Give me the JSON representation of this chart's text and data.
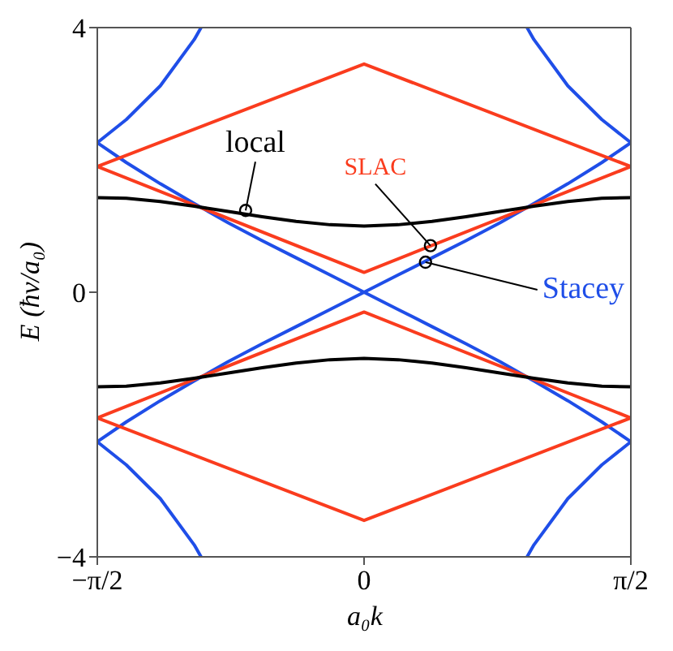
{
  "chart_data": {
    "type": "line",
    "xlabel": "a₀k",
    "ylabel": "E  (ħv/a₀)",
    "xlim": [
      -1.571,
      1.571
    ],
    "xticks": [
      {
        "value": -1.571,
        "label": "−π/2"
      },
      {
        "value": 0,
        "label": "0"
      },
      {
        "value": 1.571,
        "label": "π/2"
      }
    ],
    "ylim": [
      -4,
      4
    ],
    "yticks": [
      {
        "value": -4,
        "label": "−4"
      },
      0,
      4
    ],
    "marker": "none",
    "line_style": "solid",
    "series": [
      {
        "color": "#1f4ee8",
        "x": [
          -1.571,
          -1.4,
          -1.2,
          -1,
          -0.8,
          -0.6,
          -0.4,
          -0.2,
          0,
          0.2,
          0.4,
          0.6,
          0.8,
          1,
          1.2,
          1.4,
          1.571
        ],
        "values": [
          -2.26,
          -1.96,
          -1.64,
          -1.34,
          -1.05,
          -0.78,
          -0.52,
          -0.26,
          0,
          0.26,
          0.52,
          0.78,
          1.05,
          1.34,
          1.64,
          1.96,
          2.26
        ]
      },
      {
        "color": "#1f4ee8",
        "x": [
          -1.571,
          -1.4,
          -1.2,
          -1,
          -0.8,
          -0.6,
          -0.4,
          -0.2,
          0,
          0.2,
          0.4,
          0.6,
          0.8,
          1,
          1.2,
          1.4,
          1.571
        ],
        "values": [
          2.26,
          1.96,
          1.64,
          1.34,
          1.05,
          0.78,
          0.52,
          0.26,
          0,
          -0.26,
          -0.52,
          -0.78,
          -1.05,
          -1.34,
          -1.64,
          -1.96,
          -2.26
        ]
      },
      {
        "color": "#1f4ee8",
        "x": [
          -1.571,
          -1.4,
          -1.2,
          -1,
          -0.96
        ],
        "values": [
          2.26,
          2.61,
          3.12,
          3.82,
          4
        ]
      },
      {
        "color": "#1f4ee8",
        "x": [
          0.96,
          1,
          1.2,
          1.4,
          1.571
        ],
        "values": [
          4,
          3.82,
          3.12,
          2.61,
          2.26
        ]
      },
      {
        "color": "#1f4ee8",
        "x": [
          -1.571,
          -1.4,
          -1.2,
          -1,
          -0.96
        ],
        "values": [
          -2.26,
          -2.61,
          -3.12,
          -3.82,
          -4
        ]
      },
      {
        "color": "#1f4ee8",
        "x": [
          0.96,
          1,
          1.2,
          1.4,
          1.571
        ],
        "values": [
          -4,
          -3.82,
          -3.12,
          -2.61,
          -2.26
        ]
      },
      {
        "color": "#fa3c1e",
        "x": [
          -1.571,
          0,
          1.571
        ],
        "values": [
          1.9,
          3.45,
          1.9
        ]
      },
      {
        "color": "#fa3c1e",
        "x": [
          -1.571,
          0,
          1.571
        ],
        "values": [
          1.9,
          0.3,
          1.9
        ]
      },
      {
        "color": "#fa3c1e",
        "x": [
          -1.571,
          0,
          1.571
        ],
        "values": [
          -1.9,
          -0.3,
          -1.9
        ]
      },
      {
        "color": "#fa3c1e",
        "x": [
          -1.571,
          0,
          1.571
        ],
        "values": [
          -1.9,
          -3.45,
          -1.9
        ]
      },
      {
        "color": "#000000",
        "x": [
          -1.571,
          -1.4,
          -1.2,
          -1,
          -0.8,
          -0.6,
          -0.4,
          -0.2,
          0,
          0.2,
          0.4,
          0.6,
          0.8,
          1,
          1.2,
          1.4,
          1.571
        ],
        "values": [
          1.43,
          1.42,
          1.37,
          1.3,
          1.22,
          1.14,
          1.07,
          1.02,
          1,
          1.02,
          1.07,
          1.14,
          1.22,
          1.3,
          1.37,
          1.42,
          1.43
        ]
      },
      {
        "color": "#000000",
        "x": [
          -1.571,
          -1.4,
          -1.2,
          -1,
          -0.8,
          -0.6,
          -0.4,
          -0.2,
          0,
          0.2,
          0.4,
          0.6,
          0.8,
          1,
          1.2,
          1.4,
          1.571
        ],
        "values": [
          -1.43,
          -1.42,
          -1.37,
          -1.3,
          -1.22,
          -1.14,
          -1.07,
          -1.02,
          -1,
          -1.02,
          -1.07,
          -1.14,
          -1.22,
          -1.3,
          -1.37,
          -1.42,
          -1.43
        ]
      }
    ],
    "annotations": [
      {
        "text": "local",
        "x": -0.7,
        "y": 1.22
      },
      {
        "text": "SLAC",
        "x": 0.385,
        "y": 0.69
      },
      {
        "text": "Stacey",
        "x": 0.356,
        "y": 0.44
      }
    ]
  }
}
